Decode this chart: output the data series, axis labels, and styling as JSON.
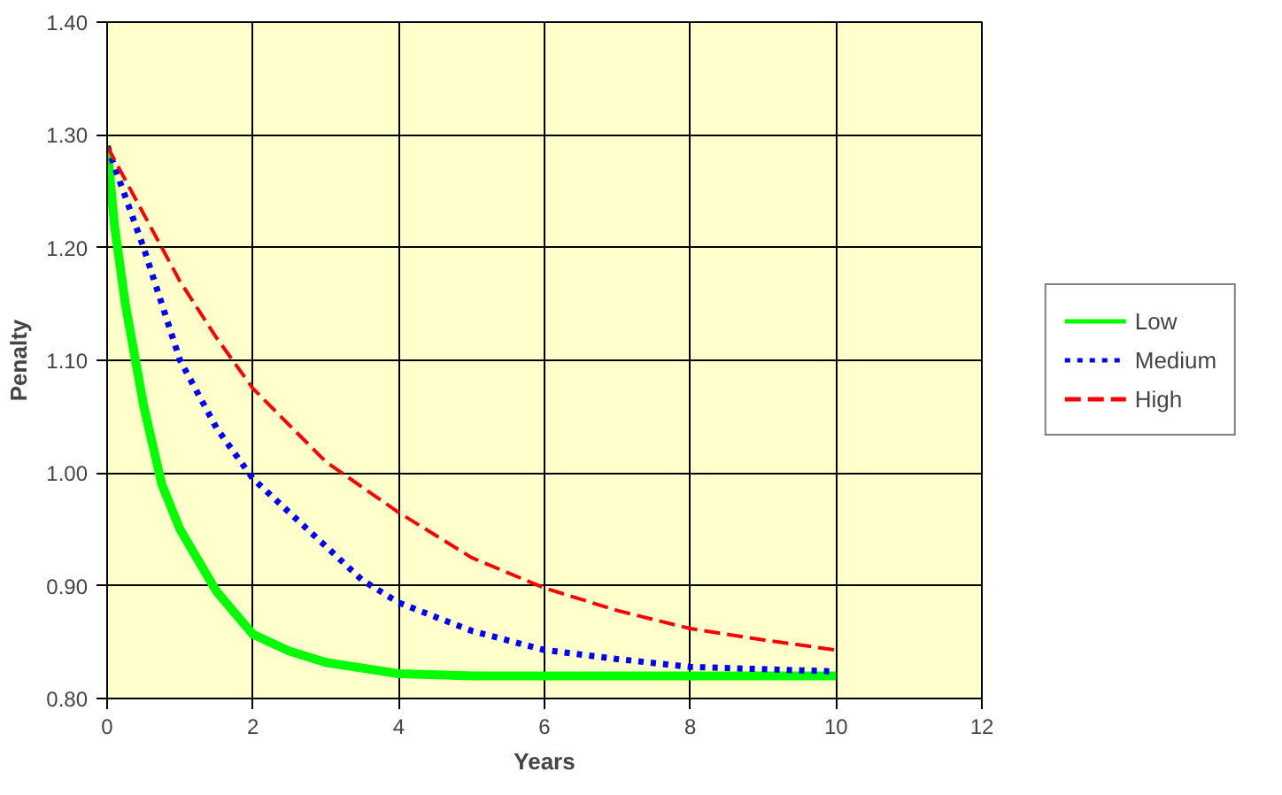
{
  "chart_data": {
    "type": "line",
    "xlabel": "Years",
    "ylabel": "Penalty",
    "xlim": [
      0,
      12
    ],
    "xticks": [
      0,
      2,
      4,
      6,
      8,
      10,
      12
    ],
    "ylim": [
      0.8,
      1.4
    ],
    "yticks": [
      {
        "value": 0.8,
        "label": "0.80"
      },
      {
        "value": 0.9,
        "label": "0.90"
      },
      {
        "value": 1.0,
        "label": "1.00"
      },
      {
        "value": 1.1,
        "label": "1.10"
      },
      {
        "value": 1.2,
        "label": "1.20"
      },
      {
        "value": 1.3,
        "label": "1.30"
      },
      {
        "value": 1.4,
        "label": "1.40"
      }
    ],
    "grid": true,
    "legend": "right",
    "marker": "none",
    "series": [
      {
        "name": "Low",
        "color": "#00ff00",
        "line_style": "solid",
        "x": [
          0,
          0.1,
          0.25,
          0.5,
          0.75,
          1,
          1.5,
          2,
          2.5,
          3,
          4,
          5,
          6,
          8,
          10
        ],
        "values": [
          1.29,
          1.22,
          1.15,
          1.06,
          0.99,
          0.95,
          0.895,
          0.857,
          0.842,
          0.832,
          0.822,
          0.82,
          0.82,
          0.82,
          0.82
        ]
      },
      {
        "name": "Medium",
        "color": "#0000ff",
        "line_style": "dotted",
        "x": [
          0,
          0.5,
          1,
          1.5,
          2,
          3,
          3.5,
          4,
          5,
          6,
          7,
          8,
          10
        ],
        "values": [
          1.29,
          1.2,
          1.1,
          1.04,
          0.995,
          0.935,
          0.905,
          0.885,
          0.86,
          0.843,
          0.835,
          0.828,
          0.824
        ]
      },
      {
        "name": "High",
        "color": "#ff0000",
        "line_style": "dashed",
        "x": [
          0,
          0.5,
          1,
          1.5,
          2,
          3,
          4,
          5,
          6,
          7,
          8,
          9,
          10
        ],
        "values": [
          1.29,
          1.23,
          1.17,
          1.12,
          1.075,
          1.01,
          0.965,
          0.925,
          0.898,
          0.878,
          0.862,
          0.852,
          0.843
        ]
      }
    ]
  }
}
